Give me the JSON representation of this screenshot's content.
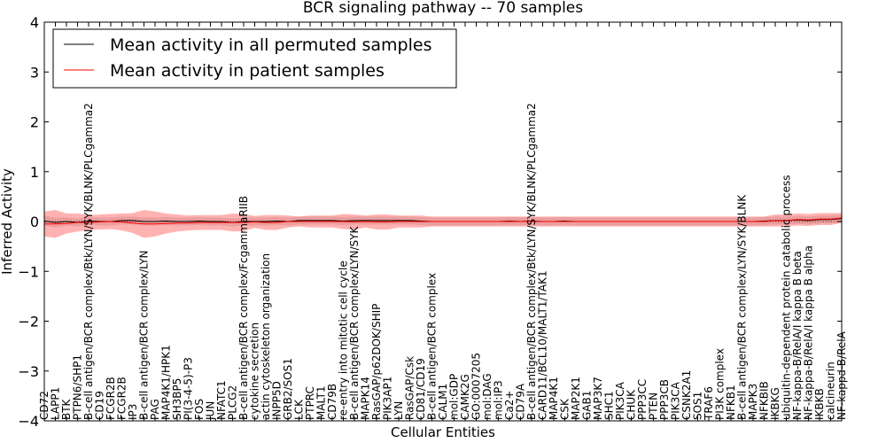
{
  "chart_data": {
    "type": "line",
    "title": "BCR signaling pathway -- 70 samples",
    "xlabel": "Cellular Entities",
    "ylabel": "Inferred Activity",
    "ylim": [
      -4,
      4
    ],
    "yticks": [
      4,
      3,
      2,
      1,
      0,
      -1,
      -2,
      -3,
      -4
    ],
    "ytick_labels": [
      "4",
      "3",
      "2",
      "1",
      "0",
      "−1",
      "−2",
      "−3",
      "−4"
    ],
    "grid": false,
    "legend_position": "top-left",
    "categories": [
      "CD72",
      "LAPP1",
      "BTK",
      "PTPN6/SHP1",
      "B-cell antigen/BCR complex/Btk/LYN/SYK/BLNK/PLCgamma2",
      "CD19",
      "FCGR2B",
      "FCGR2B",
      "IP3",
      "B-cell antigen/BCR complex/LYN",
      "PAG",
      "MAP4K1/HPK1",
      "SH3BP5",
      "PI(3-4-5)-P3",
      "FOS",
      "JUN",
      "NFATC1",
      "PLCG2",
      "B-cell antigen/BCR complex/FcgammaRIIB",
      "cytokine secretion",
      "actin cytoskeleton organization",
      "INPP5D",
      "GRB2/SOS1",
      "LCK",
      "PTPRC",
      "MALT1",
      "CD79B",
      "re-entry into mitotic cell cycle",
      "B-cell antigen/BCR complex/LYN/SYK",
      "MAPK14",
      "RasGAP/p62DOK/SHIP",
      "PIK3AP1",
      "LYN",
      "RasGAP/Csk",
      "CD81/CD19",
      "B-cell antigen/BCR complex",
      "CALM1",
      "mol:GDP",
      "CAMK2G",
      "GO:0007205",
      "mol:DAG",
      "mol:IP3",
      "Ca2+",
      "CD79A",
      "B-cell antigen/BCR complex/Btk/LYN/SYK/BLNK/PLCgamma2",
      "CARD11/BCL10/MALT1/TAK1",
      "MAP4K1",
      "CSK",
      "MAP2K1",
      "GAB1",
      "MAP3K7",
      "SHC1",
      "PIK3CA",
      "CHUK",
      "PPP3CC",
      "PTEN",
      "PPP3CB",
      "PIK3CA",
      "CSNK2A1",
      "SOS1",
      "TRAF6",
      "PI3K complex",
      "NFKB1",
      "B-cell antigen/BCR complex/LYN/SYK/BLNK",
      "MAPK3",
      "NFKBIB",
      "IKBKG",
      "ubiquitin-dependent protein catabolic process",
      "NF-kappa-B/RelA/I kappa B beta",
      "NF-kappa-B/RelA/I kappa B alpha",
      "IKBKB",
      "calcineurin",
      "NF-kappa-B/RelA"
    ],
    "series": [
      {
        "name": "Mean activity in all permuted samples",
        "color": "#000000",
        "values": [
          0.01,
          -0.02,
          0.0,
          -0.02,
          0.01,
          0.0,
          0.0,
          0.02,
          0.02,
          0.0,
          0.0,
          0.01,
          0.0,
          0.0,
          0.01,
          0.0,
          0.0,
          -0.02,
          0.0,
          0.0,
          0.0,
          0.01,
          0.0,
          0.02,
          0.02,
          0.02,
          0.02,
          0.01,
          0.02,
          0.02,
          0.02,
          0.02,
          0.02,
          0.02,
          0.01,
          0.0,
          0.0,
          0.0,
          0.0,
          0.0,
          0.0,
          0.0,
          0.01,
          0.0,
          0.01,
          0.0,
          0.0,
          0.01,
          0.0,
          0.0,
          0.0,
          0.0,
          0.0,
          0.0,
          0.0,
          0.0,
          0.0,
          0.0,
          0.0,
          0.0,
          0.0,
          0.0,
          0.0,
          0.0,
          0.0,
          0.01,
          0.02,
          0.02,
          0.03,
          0.02,
          0.04,
          0.04,
          0.06
        ],
        "band_halfwidth": [
          0.1,
          0.1,
          0.08,
          0.08,
          0.08,
          0.08,
          0.08,
          0.08,
          0.08,
          0.08,
          0.08,
          0.08,
          0.08,
          0.08,
          0.08,
          0.08,
          0.08,
          0.08,
          0.08,
          0.08,
          0.08,
          0.08,
          0.08,
          0.08,
          0.08,
          0.08,
          0.08,
          0.08,
          0.08,
          0.08,
          0.08,
          0.08,
          0.08,
          0.08,
          0.08,
          0.08,
          0.08,
          0.08,
          0.08,
          0.08,
          0.08,
          0.08,
          0.08,
          0.08,
          0.08,
          0.08,
          0.08,
          0.08,
          0.08,
          0.08,
          0.08,
          0.08,
          0.08,
          0.08,
          0.08,
          0.08,
          0.08,
          0.08,
          0.08,
          0.08,
          0.08,
          0.08,
          0.08,
          0.08,
          0.08,
          0.08,
          0.08,
          0.08,
          0.08,
          0.08,
          0.08,
          0.08,
          0.08
        ],
        "band_color": "#b0b0b0"
      },
      {
        "name": "Mean activity in patient samples",
        "color": "#ff0000",
        "values": [
          -0.05,
          -0.05,
          -0.04,
          -0.02,
          -0.02,
          -0.01,
          0.0,
          -0.01,
          -0.03,
          -0.05,
          -0.05,
          -0.04,
          -0.03,
          -0.03,
          -0.02,
          -0.02,
          -0.02,
          -0.02,
          -0.02,
          -0.01,
          -0.02,
          -0.02,
          0.0,
          0.0,
          0.0,
          0.0,
          0.0,
          0.0,
          -0.01,
          0.0,
          -0.01,
          -0.01,
          0.0,
          0.0,
          0.0,
          0.0,
          0.0,
          0.0,
          0.0,
          0.0,
          0.0,
          0.0,
          0.0,
          0.0,
          0.0,
          0.0,
          0.0,
          0.0,
          0.0,
          0.0,
          0.0,
          0.0,
          0.0,
          0.0,
          0.0,
          0.0,
          0.0,
          0.0,
          0.0,
          0.0,
          0.0,
          0.0,
          0.0,
          0.0,
          0.0,
          0.0,
          0.02,
          0.02,
          0.04,
          0.03,
          0.05,
          0.05,
          0.07
        ],
        "band_halfwidth": [
          0.25,
          0.28,
          0.2,
          0.18,
          0.15,
          0.15,
          0.15,
          0.17,
          0.2,
          0.28,
          0.25,
          0.2,
          0.17,
          0.15,
          0.15,
          0.15,
          0.15,
          0.18,
          0.17,
          0.12,
          0.15,
          0.15,
          0.12,
          0.1,
          0.12,
          0.12,
          0.12,
          0.15,
          0.15,
          0.12,
          0.15,
          0.15,
          0.12,
          0.12,
          0.12,
          0.1,
          0.1,
          0.1,
          0.1,
          0.1,
          0.1,
          0.1,
          0.1,
          0.1,
          0.1,
          0.1,
          0.1,
          0.1,
          0.1,
          0.1,
          0.1,
          0.1,
          0.1,
          0.1,
          0.1,
          0.1,
          0.1,
          0.1,
          0.1,
          0.1,
          0.1,
          0.1,
          0.1,
          0.1,
          0.1,
          0.1,
          0.12,
          0.12,
          0.12,
          0.12,
          0.12,
          0.12,
          0.1
        ],
        "band_color": "#ff0000"
      }
    ]
  }
}
